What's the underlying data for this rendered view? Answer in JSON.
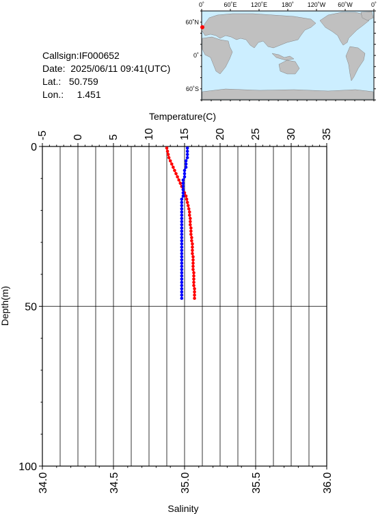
{
  "info": {
    "callsign": "Callsign:IF000652",
    "date": "Date:  2025/06/11 09:41(UTC)",
    "lat": "Lat.:   50.759",
    "lon": "Lon.:     1.451"
  },
  "map": {
    "lon_labels": [
      "0˚",
      "60˚E",
      "120˚E",
      "180˚",
      "120˚W",
      "60˚W",
      "0˚"
    ],
    "lat_labels": [
      "60˚N",
      "0˚",
      "60˚S"
    ],
    "ocean_color": "#cceeff",
    "land_color": "#c0c0c0",
    "marker": {
      "lat": 50.759,
      "lon": 1.451,
      "color": "#ff0000"
    }
  },
  "chart_data": {
    "type": "line",
    "ylabel": "Depth(m)",
    "ylim": [
      0,
      100
    ],
    "y_ticks": [
      "0",
      "50",
      "100"
    ],
    "temperature_axis": {
      "label": "Temperature(C)",
      "range": [
        -5,
        35
      ],
      "ticks": [
        "-5",
        "0",
        "5",
        "10",
        "15",
        "20",
        "25",
        "30",
        "35"
      ]
    },
    "salinity_axis": {
      "label": "Salinity",
      "range": [
        34.0,
        36.0
      ],
      "ticks": [
        "34.0",
        "34.5",
        "35.0",
        "35.5",
        "36.0"
      ]
    },
    "grid": true,
    "series": [
      {
        "axis": "temperature",
        "color": "#ff0000",
        "points": [
          [
            12.5,
            0.5
          ],
          [
            12.6,
            1.5
          ],
          [
            12.7,
            2.5
          ],
          [
            12.8,
            3.5
          ],
          [
            13.0,
            4.5
          ],
          [
            13.2,
            5.5
          ],
          [
            13.4,
            6.5
          ],
          [
            13.6,
            7.5
          ],
          [
            13.8,
            8.5
          ],
          [
            14.0,
            9.5
          ],
          [
            14.2,
            10.5
          ],
          [
            14.4,
            11.5
          ],
          [
            14.6,
            12.5
          ],
          [
            14.8,
            13.5
          ],
          [
            15.0,
            14.5
          ],
          [
            15.2,
            15.5
          ],
          [
            15.3,
            16.5
          ],
          [
            15.4,
            17.5
          ],
          [
            15.5,
            18.5
          ],
          [
            15.6,
            19.5
          ],
          [
            15.7,
            20.5
          ],
          [
            15.7,
            21.5
          ],
          [
            15.8,
            22.5
          ],
          [
            15.8,
            23.5
          ],
          [
            15.8,
            24.5
          ],
          [
            15.9,
            25.5
          ],
          [
            15.9,
            26.5
          ],
          [
            15.9,
            27.5
          ],
          [
            16.0,
            28.5
          ],
          [
            16.0,
            29.5
          ],
          [
            16.1,
            30.5
          ],
          [
            16.1,
            31.5
          ],
          [
            16.1,
            32.5
          ],
          [
            16.1,
            33.5
          ],
          [
            16.2,
            34.5
          ],
          [
            16.2,
            35.5
          ],
          [
            16.2,
            36.5
          ],
          [
            16.2,
            37.5
          ],
          [
            16.2,
            38.5
          ],
          [
            16.3,
            39.5
          ],
          [
            16.3,
            40.5
          ],
          [
            16.3,
            41.5
          ],
          [
            16.3,
            42.5
          ],
          [
            16.3,
            43.5
          ],
          [
            16.4,
            44.5
          ],
          [
            16.4,
            45.5
          ],
          [
            16.4,
            46.5
          ],
          [
            16.4,
            47.5
          ]
        ]
      },
      {
        "axis": "salinity",
        "color": "#0000ff",
        "points": [
          [
            35.02,
            0.5
          ],
          [
            35.02,
            1.5
          ],
          [
            35.02,
            2.5
          ],
          [
            35.02,
            3.5
          ],
          [
            35.01,
            4.5
          ],
          [
            35.01,
            5.5
          ],
          [
            35.01,
            6.5
          ],
          [
            35.0,
            7.5
          ],
          [
            35.0,
            8.5
          ],
          [
            35.0,
            9.5
          ],
          [
            34.99,
            10.5
          ],
          [
            34.99,
            11.5
          ],
          [
            34.99,
            12.5
          ],
          [
            34.99,
            13.5
          ],
          [
            34.99,
            14.5
          ],
          [
            34.99,
            15.5
          ],
          [
            34.98,
            16.5
          ],
          [
            34.98,
            17.5
          ],
          [
            34.98,
            18.5
          ],
          [
            34.98,
            19.5
          ],
          [
            34.98,
            20.5
          ],
          [
            34.98,
            21.5
          ],
          [
            34.98,
            22.5
          ],
          [
            34.98,
            23.5
          ],
          [
            34.98,
            24.5
          ],
          [
            34.98,
            25.5
          ],
          [
            34.98,
            26.5
          ],
          [
            34.98,
            27.5
          ],
          [
            34.98,
            28.5
          ],
          [
            34.98,
            29.5
          ],
          [
            34.98,
            30.5
          ],
          [
            34.98,
            31.5
          ],
          [
            34.98,
            32.5
          ],
          [
            34.98,
            33.5
          ],
          [
            34.98,
            34.5
          ],
          [
            34.98,
            35.5
          ],
          [
            34.98,
            36.5
          ],
          [
            34.98,
            37.5
          ],
          [
            34.98,
            38.5
          ],
          [
            34.98,
            39.5
          ],
          [
            34.98,
            40.5
          ],
          [
            34.98,
            41.5
          ],
          [
            34.98,
            42.5
          ],
          [
            34.98,
            43.5
          ],
          [
            34.98,
            44.5
          ],
          [
            34.98,
            45.5
          ],
          [
            34.98,
            46.5
          ],
          [
            34.98,
            47.5
          ]
        ]
      }
    ]
  }
}
